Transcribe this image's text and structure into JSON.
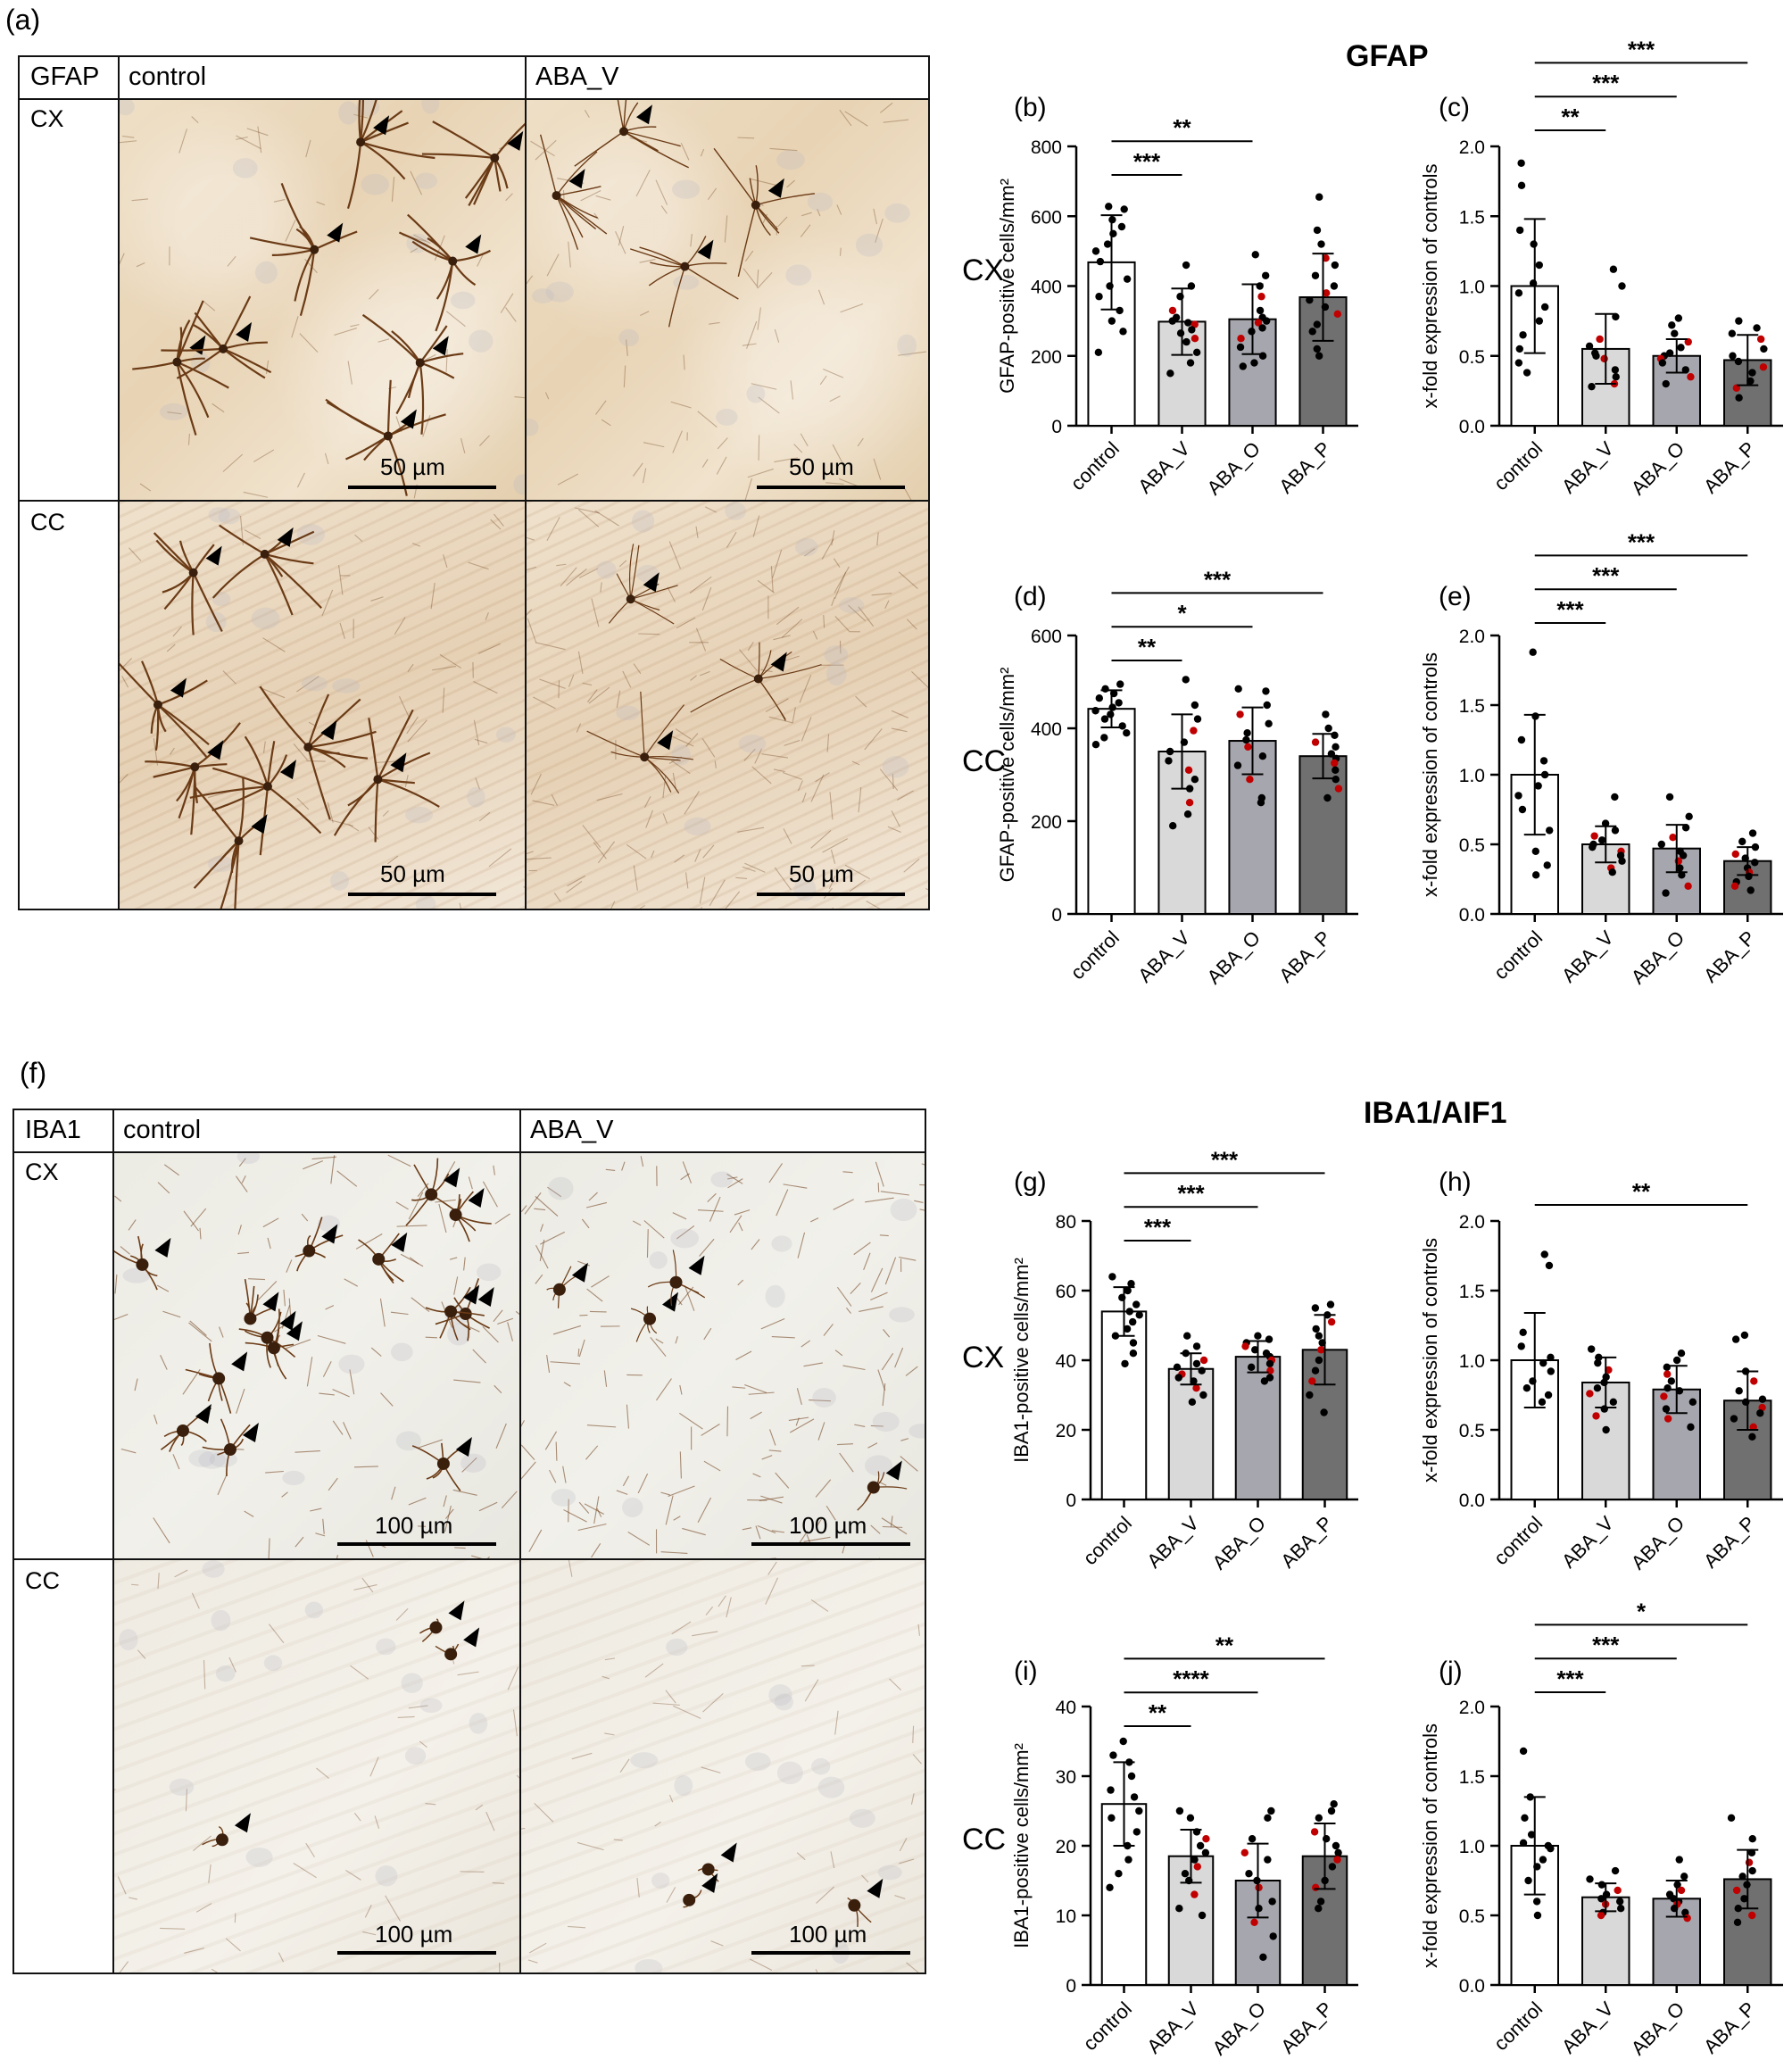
{
  "labels": {
    "a": "(a)",
    "f": "(f)"
  },
  "sections": {
    "gfap_title": "GFAP",
    "iba_title": "IBA1/AIF1"
  },
  "micro_gfap": {
    "corner": "GFAP",
    "col1": "control",
    "col2": "ABA_V",
    "row1": "CX",
    "row2": "CC",
    "scale": "50 µm"
  },
  "micro_iba": {
    "corner": "IBA1",
    "col1": "control",
    "col2": "ABA_V",
    "row1": "CX",
    "row2": "CC",
    "scale": "100 µm"
  },
  "regions": {
    "cx": "CX",
    "cc": "CC"
  },
  "colors": {
    "control": "#ffffff",
    "ABA_V": "#d9d9d9",
    "ABA_O": "#a6a6ae",
    "ABA_P": "#707070",
    "stain_brown": "#6b3b16",
    "highlight_dot": "#c00000"
  },
  "chart_data": [
    {
      "panel": "(b)",
      "type": "bar",
      "categories": [
        "control",
        "ABA_V",
        "ABA_O",
        "ABA_P"
      ],
      "values": [
        468,
        298,
        305,
        368
      ],
      "sd": [
        135,
        95,
        100,
        125
      ],
      "ylabel": "GFAP-positive cells/mm²",
      "ylim": [
        0,
        800
      ],
      "yticks": [
        0,
        200,
        400,
        600,
        800
      ],
      "sig": [
        {
          "from": 0,
          "to": 1,
          "label": "***"
        },
        {
          "from": 0,
          "to": 2,
          "label": "**"
        }
      ],
      "points": [
        [
          628,
          620,
          590,
          570,
          550,
          520,
          500,
          470,
          420,
          400,
          370,
          330,
          300,
          270,
          210
        ],
        [
          460,
          400,
          370,
          330,
          310,
          300,
          295,
          290,
          275,
          265,
          250,
          240,
          210,
          180,
          150
        ],
        [
          490,
          430,
          400,
          370,
          330,
          310,
          300,
          295,
          280,
          270,
          250,
          225,
          200,
          180,
          170
        ],
        [
          655,
          560,
          520,
          480,
          460,
          430,
          400,
          380,
          360,
          340,
          320,
          290,
          270,
          220,
          200
        ]
      ]
    },
    {
      "panel": "(c)",
      "type": "bar",
      "categories": [
        "control",
        "ABA_V",
        "ABA_O",
        "ABA_P"
      ],
      "values": [
        1.0,
        0.55,
        0.5,
        0.47
      ],
      "sd": [
        0.48,
        0.25,
        0.12,
        0.18
      ],
      "ylabel": "x-fold expression of controls",
      "ylim": [
        0,
        2.0
      ],
      "yticks": [
        "0.0",
        "0.5",
        "1.0",
        "1.5",
        "2.0"
      ],
      "sig": [
        {
          "from": 0,
          "to": 1,
          "label": "**"
        },
        {
          "from": 0,
          "to": 2,
          "label": "***"
        },
        {
          "from": 0,
          "to": 3,
          "label": "***"
        }
      ],
      "points": [
        [
          1.88,
          1.72,
          1.4,
          1.3,
          1.15,
          1.02,
          0.95,
          0.85,
          0.75,
          0.65,
          0.55,
          0.45,
          0.38
        ],
        [
          1.12,
          1.0,
          0.78,
          0.62,
          0.57,
          0.52,
          0.5,
          0.48,
          0.4,
          0.35,
          0.3,
          0.28
        ],
        [
          0.77,
          0.72,
          0.66,
          0.6,
          0.56,
          0.52,
          0.5,
          0.48,
          0.45,
          0.4,
          0.35,
          0.3
        ],
        [
          0.75,
          0.7,
          0.66,
          0.62,
          0.55,
          0.5,
          0.46,
          0.42,
          0.38,
          0.32,
          0.27,
          0.2
        ]
      ]
    },
    {
      "panel": "(d)",
      "type": "bar",
      "categories": [
        "control",
        "ABA_V",
        "ABA_O",
        "ABA_P"
      ],
      "values": [
        442,
        350,
        373,
        340
      ],
      "sd": [
        40,
        80,
        72,
        48
      ],
      "ylabel": "GFAP-positive cells/mm²",
      "ylim": [
        0,
        600
      ],
      "yticks": [
        0,
        200,
        400,
        600
      ],
      "sig": [
        {
          "from": 0,
          "to": 1,
          "label": "**"
        },
        {
          "from": 0,
          "to": 2,
          "label": "*"
        },
        {
          "from": 0,
          "to": 3,
          "label": "***"
        }
      ],
      "points": [
        [
          495,
          485,
          475,
          465,
          455,
          445,
          438,
          430,
          420,
          405,
          390,
          380,
          365
        ],
        [
          505,
          450,
          420,
          395,
          370,
          350,
          330,
          310,
          290,
          270,
          240,
          215,
          190
        ],
        [
          485,
          480,
          450,
          430,
          410,
          390,
          375,
          360,
          340,
          320,
          290,
          250,
          240
        ],
        [
          430,
          400,
          385,
          370,
          360,
          345,
          335,
          325,
          310,
          290,
          270,
          250
        ]
      ]
    },
    {
      "panel": "(e)",
      "type": "bar",
      "categories": [
        "control",
        "ABA_V",
        "ABA_O",
        "ABA_P"
      ],
      "values": [
        1.0,
        0.5,
        0.47,
        0.38
      ],
      "sd": [
        0.43,
        0.13,
        0.17,
        0.1
      ],
      "ylabel": "x-fold expression of controls",
      "ylim": [
        0,
        2.0
      ],
      "yticks": [
        "0.0",
        "0.5",
        "1.0",
        "1.5",
        "2.0"
      ],
      "sig": [
        {
          "from": 0,
          "to": 1,
          "label": "***"
        },
        {
          "from": 0,
          "to": 2,
          "label": "***"
        },
        {
          "from": 0,
          "to": 3,
          "label": "***"
        }
      ],
      "points": [
        [
          1.88,
          1.42,
          1.25,
          1.1,
          1.0,
          0.92,
          0.85,
          0.75,
          0.6,
          0.45,
          0.35,
          0.28
        ],
        [
          0.84,
          0.65,
          0.6,
          0.56,
          0.53,
          0.5,
          0.48,
          0.45,
          0.42,
          0.38,
          0.33,
          0.3
        ],
        [
          0.84,
          0.7,
          0.62,
          0.55,
          0.5,
          0.45,
          0.42,
          0.38,
          0.33,
          0.28,
          0.2,
          0.15
        ],
        [
          0.58,
          0.52,
          0.48,
          0.43,
          0.4,
          0.37,
          0.33,
          0.3,
          0.27,
          0.23,
          0.2,
          0.17
        ]
      ]
    },
    {
      "panel": "(g)",
      "type": "bar",
      "categories": [
        "control",
        "ABA_V",
        "ABA_O",
        "ABA_P"
      ],
      "values": [
        54,
        37.5,
        41,
        43
      ],
      "sd": [
        7,
        4.5,
        4.5,
        10
      ],
      "ylabel": "IBA1-positive cells/mm²",
      "ylim": [
        0,
        80
      ],
      "yticks": [
        0,
        20,
        40,
        60,
        80
      ],
      "sig": [
        {
          "from": 0,
          "to": 1,
          "label": "***"
        },
        {
          "from": 0,
          "to": 2,
          "label": "***"
        },
        {
          "from": 0,
          "to": 3,
          "label": "***"
        }
      ],
      "points": [
        [
          64,
          62,
          60,
          58,
          56,
          54,
          53,
          51,
          49,
          47,
          45,
          42,
          39
        ],
        [
          47,
          44,
          42,
          40,
          39,
          38,
          37,
          36,
          35,
          34,
          32,
          30,
          28
        ],
        [
          47,
          46,
          45,
          44,
          43,
          42,
          41,
          40,
          39,
          38,
          37,
          35,
          34
        ],
        [
          56,
          55,
          53,
          51,
          49,
          47,
          45,
          43,
          40,
          37,
          34,
          30,
          25
        ]
      ]
    },
    {
      "panel": "(h)",
      "type": "bar",
      "categories": [
        "control",
        "ABA_V",
        "ABA_O",
        "ABA_P"
      ],
      "values": [
        1.0,
        0.84,
        0.79,
        0.71
      ],
      "sd": [
        0.34,
        0.18,
        0.17,
        0.21
      ],
      "ylabel": "x-fold expression of controls",
      "ylim": [
        0,
        2.0
      ],
      "yticks": [
        "0.0",
        "0.5",
        "1.0",
        "1.5",
        "2.0"
      ],
      "sig": [
        {
          "from": 0,
          "to": 3,
          "label": "**"
        }
      ],
      "points": [
        [
          1.76,
          1.68,
          1.2,
          1.1,
          1.02,
          0.98,
          0.92,
          0.85,
          0.8,
          0.75,
          0.7
        ],
        [
          1.08,
          1.02,
          0.98,
          0.93,
          0.88,
          0.84,
          0.8,
          0.76,
          0.7,
          0.65,
          0.6,
          0.5
        ],
        [
          1.05,
          1.0,
          0.95,
          0.9,
          0.85,
          0.8,
          0.78,
          0.74,
          0.7,
          0.65,
          0.58,
          0.52
        ],
        [
          1.18,
          1.15,
          0.92,
          0.85,
          0.78,
          0.72,
          0.7,
          0.66,
          0.62,
          0.58,
          0.52,
          0.45
        ]
      ]
    },
    {
      "panel": "(i)",
      "type": "bar",
      "categories": [
        "control",
        "ABA_V",
        "ABA_O",
        "ABA_P"
      ],
      "values": [
        26,
        18.5,
        15,
        18.5
      ],
      "sd": [
        6,
        3.8,
        5.3,
        4.7
      ],
      "ylabel": "IBA1-positive cells/mm²",
      "ylim": [
        0,
        40
      ],
      "yticks": [
        0,
        10,
        20,
        30,
        40
      ],
      "sig": [
        {
          "from": 0,
          "to": 1,
          "label": "**"
        },
        {
          "from": 0,
          "to": 2,
          "label": "****"
        },
        {
          "from": 0,
          "to": 3,
          "label": "**"
        }
      ],
      "points": [
        [
          35,
          33,
          32,
          30,
          28,
          27,
          25,
          24,
          22,
          20,
          18,
          16,
          14
        ],
        [
          25,
          24,
          22,
          21,
          20,
          19,
          18,
          17,
          16,
          15,
          13,
          11,
          10
        ],
        [
          25,
          24,
          21,
          19,
          18,
          16,
          15,
          14,
          12,
          11,
          9,
          7,
          4
        ],
        [
          26,
          25,
          24,
          22,
          21,
          20,
          19,
          18,
          17,
          15,
          14,
          12,
          11
        ]
      ]
    },
    {
      "panel": "(j)",
      "type": "bar",
      "categories": [
        "control",
        "ABA_V",
        "ABA_O",
        "ABA_P"
      ],
      "values": [
        1.0,
        0.63,
        0.62,
        0.76
      ],
      "sd": [
        0.35,
        0.1,
        0.13,
        0.21
      ],
      "ylabel": "x-fold expression of controls",
      "ylim": [
        0,
        2.0
      ],
      "yticks": [
        "0.0",
        "0.5",
        "1.0",
        "1.5",
        "2.0"
      ],
      "sig": [
        {
          "from": 0,
          "to": 1,
          "label": "***"
        },
        {
          "from": 0,
          "to": 2,
          "label": "***"
        },
        {
          "from": 0,
          "to": 3,
          "label": "*"
        }
      ],
      "points": [
        [
          1.68,
          1.35,
          1.2,
          1.08,
          1.02,
          1.0,
          0.98,
          0.9,
          0.85,
          0.75,
          0.6,
          0.5
        ],
        [
          0.82,
          0.76,
          0.72,
          0.68,
          0.65,
          0.62,
          0.6,
          0.58,
          0.55,
          0.52,
          0.5
        ],
        [
          0.9,
          0.78,
          0.72,
          0.68,
          0.65,
          0.62,
          0.6,
          0.58,
          0.55,
          0.52,
          0.48
        ],
        [
          1.2,
          1.05,
          0.95,
          0.88,
          0.82,
          0.78,
          0.72,
          0.68,
          0.62,
          0.55,
          0.5,
          0.45
        ]
      ]
    }
  ]
}
